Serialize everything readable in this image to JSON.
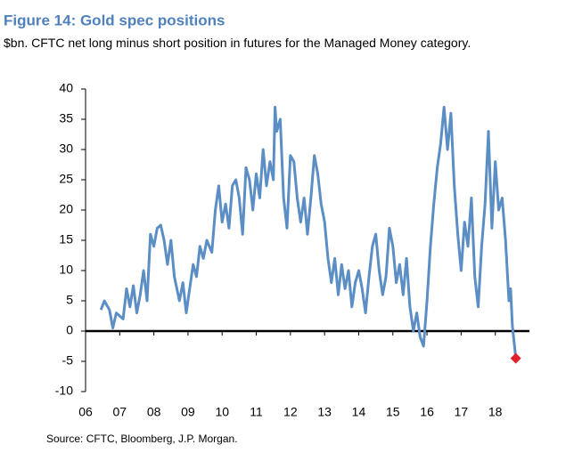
{
  "chart_data": {
    "type": "line",
    "title": "Figure 14: Gold spec positions",
    "subtitle": "$bn. CFTC net long minus short position in futures for the Managed Money category.",
    "source": "Source: CFTC, Bloomberg, J.P. Morgan.",
    "x": [
      2006.45,
      2006.55,
      2006.7,
      2006.8,
      2006.9,
      2007.0,
      2007.1,
      2007.2,
      2007.3,
      2007.4,
      2007.5,
      2007.6,
      2007.7,
      2007.8,
      2007.9,
      2008.0,
      2008.1,
      2008.2,
      2008.3,
      2008.4,
      2008.5,
      2008.6,
      2008.75,
      2008.85,
      2008.95,
      2009.05,
      2009.15,
      2009.25,
      2009.35,
      2009.45,
      2009.55,
      2009.7,
      2009.8,
      2009.9,
      2010.0,
      2010.1,
      2010.2,
      2010.3,
      2010.4,
      2010.5,
      2010.6,
      2010.7,
      2010.8,
      2010.9,
      2011.0,
      2011.1,
      2011.2,
      2011.3,
      2011.4,
      2011.5,
      2011.55,
      2011.6,
      2011.7,
      2011.8,
      2011.9,
      2012.0,
      2012.1,
      2012.2,
      2012.3,
      2012.4,
      2012.5,
      2012.6,
      2012.7,
      2012.8,
      2012.9,
      2013.0,
      2013.1,
      2013.2,
      2013.3,
      2013.4,
      2013.5,
      2013.6,
      2013.7,
      2013.8,
      2013.9,
      2014.0,
      2014.1,
      2014.2,
      2014.3,
      2014.4,
      2014.5,
      2014.6,
      2014.7,
      2014.8,
      2014.9,
      2015.0,
      2015.1,
      2015.2,
      2015.3,
      2015.4,
      2015.5,
      2015.6,
      2015.7,
      2015.8,
      2015.9,
      2016.0,
      2016.1,
      2016.2,
      2016.3,
      2016.4,
      2016.5,
      2016.6,
      2016.7,
      2016.8,
      2016.9,
      2017.0,
      2017.1,
      2017.2,
      2017.3,
      2017.4,
      2017.5,
      2017.6,
      2017.7,
      2017.8,
      2017.9,
      2018.0,
      2018.1,
      2018.2,
      2018.3,
      2018.4,
      2018.45,
      2018.5,
      2018.6
    ],
    "series": [
      {
        "color": "#5b8ec4",
        "values": [
          3.5,
          5,
          3.5,
          0.5,
          3,
          2.5,
          2,
          7,
          4,
          7.5,
          3,
          6,
          10,
          5,
          16,
          14,
          17,
          17.5,
          15,
          11,
          15,
          9,
          5,
          8,
          3,
          7,
          11,
          9,
          14,
          12,
          15,
          13,
          20,
          24,
          18,
          21,
          17,
          24,
          25,
          22,
          16,
          27,
          25,
          20,
          26,
          22,
          30,
          24,
          28,
          25,
          37,
          33,
          35,
          22,
          17,
          29,
          28,
          22,
          18,
          22,
          16,
          22,
          29,
          26,
          21,
          18,
          12,
          8,
          12,
          6,
          11,
          7,
          10,
          4,
          8,
          10,
          7,
          3,
          9,
          14,
          16,
          10,
          6,
          9,
          17,
          14,
          8,
          11,
          6,
          12,
          4,
          0,
          3,
          -1,
          -2.5,
          5,
          14,
          21,
          27,
          31,
          37,
          30,
          36,
          24,
          16,
          10,
          18,
          14,
          22,
          9,
          4,
          14,
          21,
          33,
          17,
          28,
          20,
          22,
          15,
          5,
          7,
          1,
          -4.5
        ]
      }
    ],
    "highlight": {
      "color": "#e0202a"
    },
    "xlim": [
      2006,
      2019
    ],
    "xticks": [
      {
        "value": 2006,
        "label": "06"
      },
      {
        "value": 2007,
        "label": "07"
      },
      {
        "value": 2008,
        "label": "08"
      },
      {
        "value": 2009,
        "label": "09"
      },
      {
        "value": 2010,
        "label": "10"
      },
      {
        "value": 2011,
        "label": "11"
      },
      {
        "value": 2012,
        "label": "12"
      },
      {
        "value": 2013,
        "label": "13"
      },
      {
        "value": 2014,
        "label": "14"
      },
      {
        "value": 2015,
        "label": "15"
      },
      {
        "value": 2016,
        "label": "16"
      },
      {
        "value": 2017,
        "label": "17"
      },
      {
        "value": 2018,
        "label": "18"
      }
    ],
    "ylim": [
      -10,
      40
    ],
    "yticks": [
      -10,
      -5,
      0,
      5,
      10,
      15,
      20,
      25,
      30,
      35,
      40
    ],
    "grid": false
  }
}
